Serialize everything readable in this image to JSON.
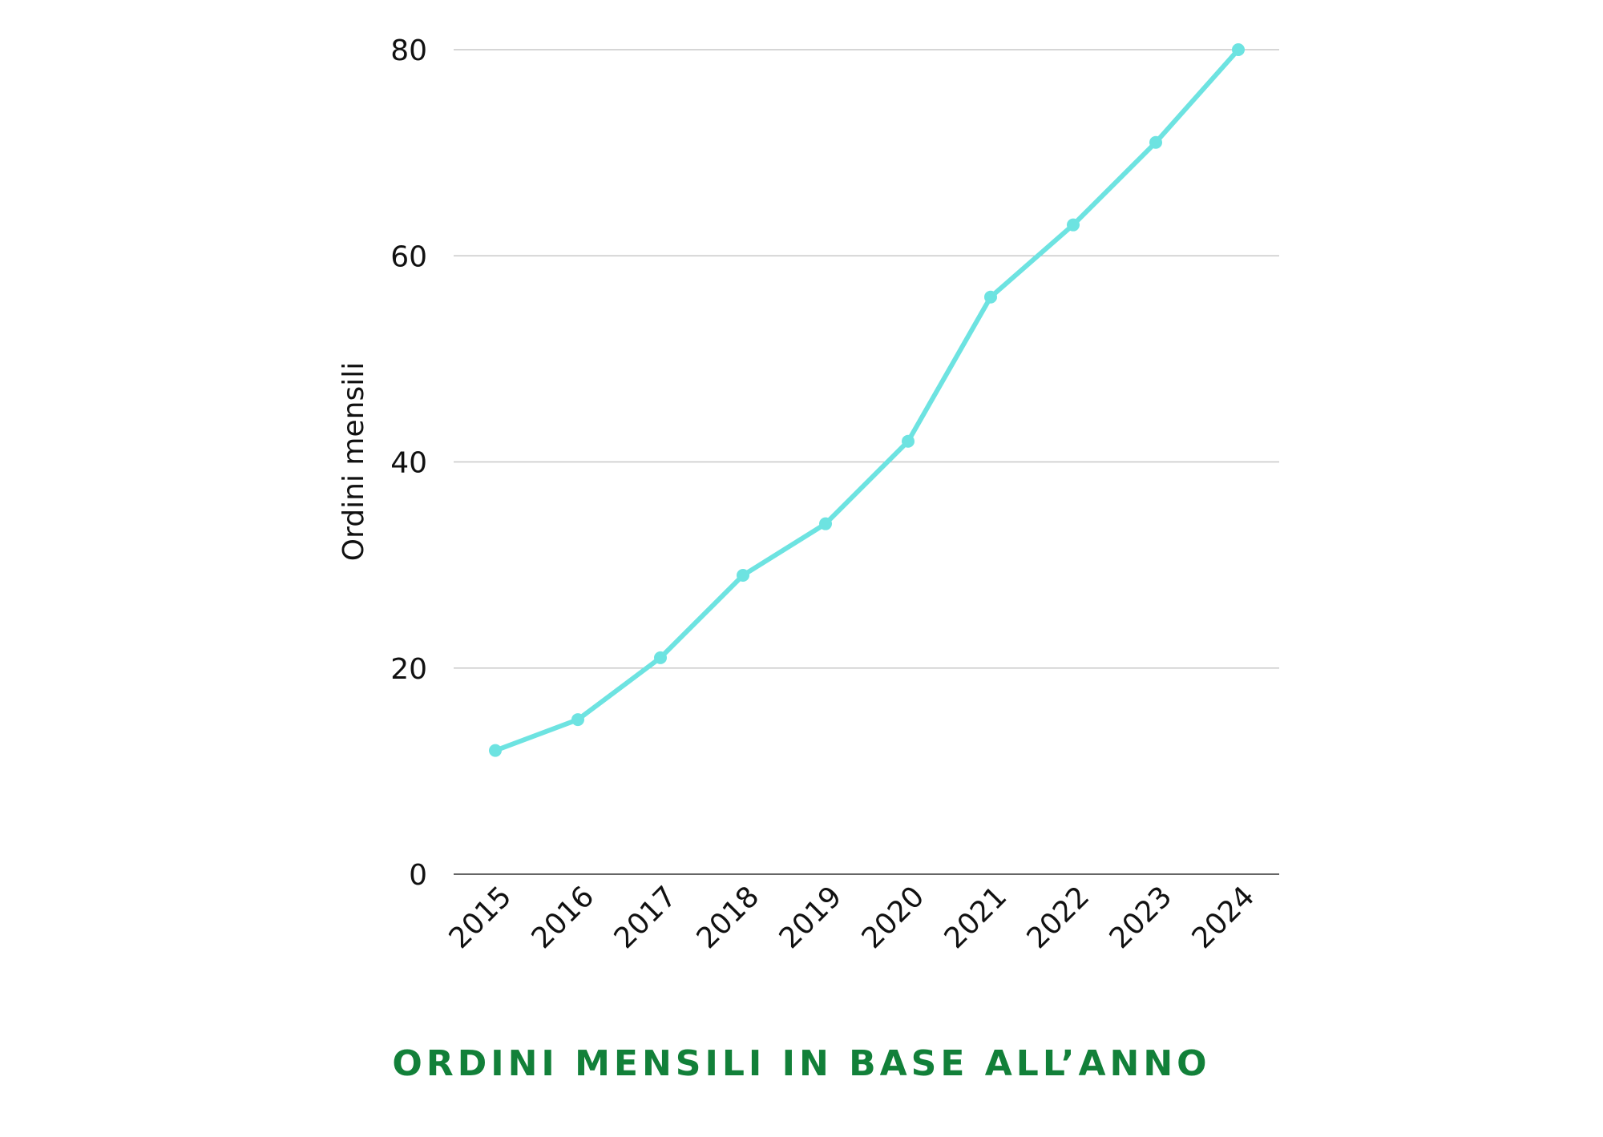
{
  "chart_data": {
    "type": "line",
    "title": "ORDINI MENSILI IN BASE ALL’ANNO",
    "xlabel": "",
    "ylabel": "Ordini mensili",
    "categories": [
      "2015",
      "2016",
      "2017",
      "2018",
      "2019",
      "2020",
      "2021",
      "2022",
      "2023",
      "2024"
    ],
    "series": [
      {
        "values": [
          12,
          15,
          21,
          29,
          34,
          42,
          56,
          63,
          71,
          80
        ]
      }
    ],
    "ylim": [
      0,
      80
    ],
    "yticks": [
      0,
      20,
      40,
      60,
      80
    ],
    "grid": true,
    "legend": "none",
    "colors": {
      "line": "#6de3e1",
      "title": "#128039",
      "grid": "#c8c8c8",
      "axis": "#666666"
    }
  }
}
